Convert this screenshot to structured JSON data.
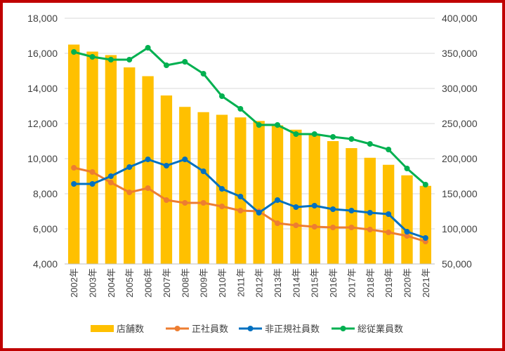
{
  "chart_data": {
    "type": "bar+line",
    "title": "",
    "categories": [
      "2002年",
      "2003年",
      "2004年",
      "2005年",
      "2006年",
      "2007年",
      "2008年",
      "2009年",
      "2010年",
      "2011年",
      "2012年",
      "2013年",
      "2014年",
      "2015年",
      "2016年",
      "2017年",
      "2018年",
      "2019年",
      "2020年",
      "2021年"
    ],
    "left_axis": {
      "min": 4000,
      "max": 18000,
      "step": 2000,
      "ticks": [
        "4,000",
        "6,000",
        "8,000",
        "10,000",
        "12,000",
        "14,000",
        "16,000",
        "18,000"
      ]
    },
    "right_axis": {
      "min": 50000,
      "max": 400000,
      "step": 50000,
      "ticks": [
        "50,000",
        "100,000",
        "150,000",
        "200,000",
        "250,000",
        "300,000",
        "350,000",
        "400,000"
      ]
    },
    "grid": true,
    "legend_position": "bottom",
    "series": [
      {
        "name": "店舗数",
        "type": "bar",
        "axis": "left",
        "color": "#ffc000",
        "values": [
          16500,
          16100,
          15900,
          15200,
          14700,
          13600,
          12950,
          12650,
          12500,
          12350,
          12150,
          11900,
          11650,
          11350,
          11000,
          10600,
          10050,
          9650,
          9050,
          8450
        ]
      },
      {
        "name": "正社員数",
        "type": "line",
        "axis": "right",
        "color": "#ed7d31",
        "values": [
          187000,
          181000,
          166000,
          152000,
          158000,
          141000,
          137000,
          137000,
          132000,
          126000,
          125000,
          108000,
          105000,
          103000,
          102000,
          102000,
          99000,
          95000,
          90000,
          82000
        ]
      },
      {
        "name": "非正規社員数",
        "type": "line",
        "axis": "right",
        "color": "#0070c0",
        "values": [
          164000,
          164000,
          175000,
          188000,
          199000,
          190000,
          199000,
          182000,
          157000,
          146000,
          123000,
          141000,
          131000,
          133000,
          128000,
          126000,
          123000,
          121000,
          96000,
          87000
        ]
      },
      {
        "name": "総従業員数",
        "type": "line",
        "axis": "right",
        "color": "#00b050",
        "values": [
          352000,
          345000,
          341000,
          341000,
          358000,
          333000,
          338000,
          321000,
          289000,
          271000,
          248000,
          248000,
          235000,
          235000,
          231000,
          228000,
          221000,
          213000,
          186000,
          163000
        ]
      }
    ]
  }
}
